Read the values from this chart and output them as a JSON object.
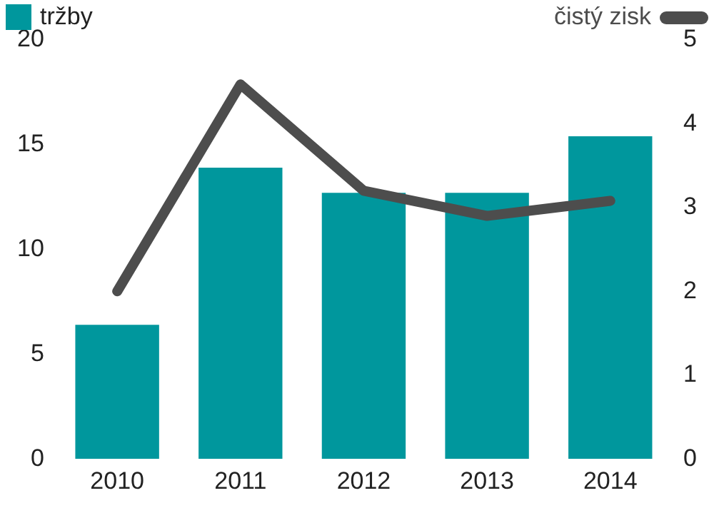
{
  "chart_data": {
    "type": "bar",
    "categories": [
      "2010",
      "2011",
      "2012",
      "2013",
      "2014"
    ],
    "series": [
      {
        "name": "tržby",
        "color": "#00979d",
        "values": [
          6.4,
          13.9,
          12.7,
          12.7,
          15.4
        ]
      },
      {
        "name": "čistý zisk",
        "type": "line",
        "axis": "y2",
        "color": "#4d4d4d",
        "values": [
          2.0,
          4.47,
          3.2,
          2.9,
          3.08
        ]
      }
    ],
    "ylim": [
      0,
      20
    ],
    "yticks": [
      0,
      5,
      10,
      15,
      20
    ],
    "y2lim": [
      0,
      5
    ],
    "y2ticks": [
      0,
      1,
      2,
      3,
      4,
      5
    ],
    "grid": false,
    "legend": "top",
    "marker": "none"
  }
}
